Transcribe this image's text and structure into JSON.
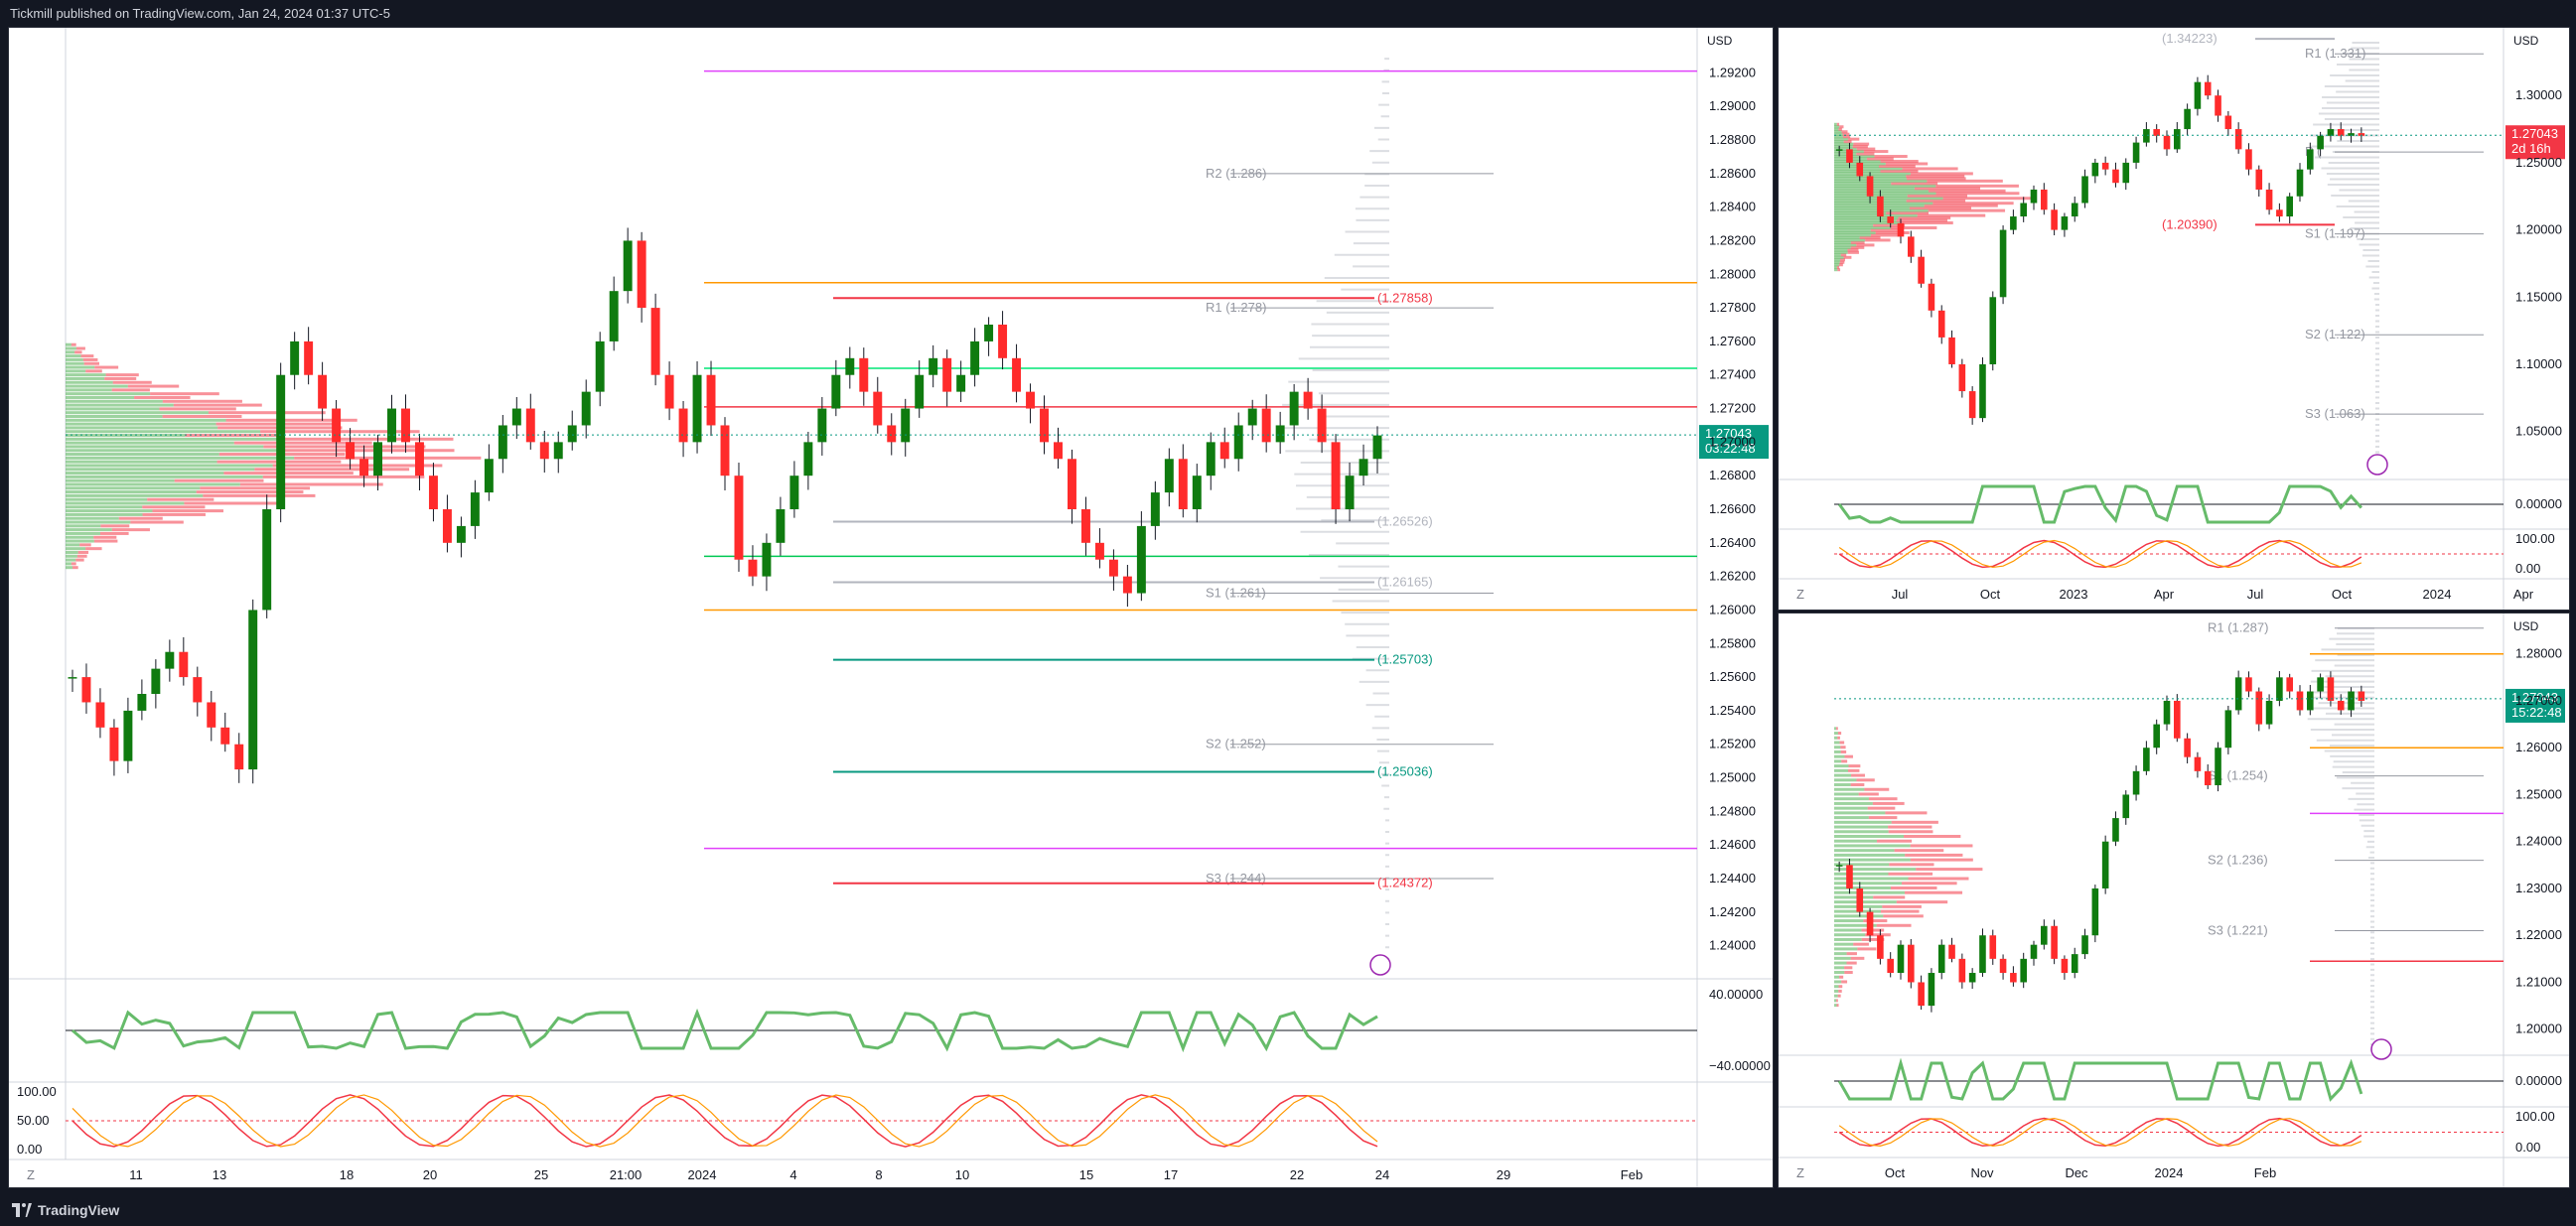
{
  "header": {
    "published": "Tickmill published on TradingView.com, Jan 24, 2024 01:37 UTC-5"
  },
  "footer": {
    "brand": "TradingView"
  },
  "chart_data": [
    {
      "type": "candlestick",
      "panel": "main",
      "currency": "USD",
      "last_price": "1.27043",
      "countdown": "03:22:48",
      "y_ticks": [
        "1.29200",
        "1.29000",
        "1.28800",
        "1.28600",
        "1.28400",
        "1.28200",
        "1.28000",
        "1.27800",
        "1.27600",
        "1.27400",
        "1.27200",
        "1.27000",
        "1.26800",
        "1.26600",
        "1.26400",
        "1.26200",
        "1.26000",
        "1.25800",
        "1.25600",
        "1.25400",
        "1.25200",
        "1.25000",
        "1.24800",
        "1.24600",
        "1.24400",
        "1.24200",
        "1.24000"
      ],
      "ylim": [
        1.2385,
        1.2935
      ],
      "x_ticks": [
        "11",
        "13",
        "18",
        "20",
        "25",
        "21:00",
        "2024",
        "4",
        "8",
        "10",
        "15",
        "17",
        "22",
        "24",
        "29",
        "Feb"
      ],
      "pivot_labels": [
        {
          "label": "R2 (1.286)",
          "value": 1.286
        },
        {
          "label": "R1 (1.278)",
          "value": 1.278
        },
        {
          "label": "S1 (1.261)",
          "value": 1.261
        },
        {
          "label": "S2 (1.252)",
          "value": 1.252
        },
        {
          "label": "S3 (1.244)",
          "value": 1.244
        }
      ],
      "level_labels": [
        {
          "label": "(1.27858)",
          "value": 1.27858,
          "color": "#f23645"
        },
        {
          "label": "(1.26526)",
          "value": 1.26526,
          "color": "#b2b5be"
        },
        {
          "label": "(1.26165)",
          "value": 1.26165,
          "color": "#b2b5be"
        },
        {
          "label": "(1.25703)",
          "value": 1.25703,
          "color": "#089981"
        },
        {
          "label": "(1.25036)",
          "value": 1.25036,
          "color": "#089981"
        },
        {
          "label": "(1.24372)",
          "value": 1.24372,
          "color": "#f23645"
        }
      ],
      "hlines": [
        {
          "value": 1.2921,
          "color": "#e040fb"
        },
        {
          "value": 1.2795,
          "color": "#ff9800"
        },
        {
          "value": 1.2744,
          "color": "#00e676"
        },
        {
          "value": 1.2721,
          "color": "#f23645"
        },
        {
          "value": 1.2632,
          "color": "#00c853"
        },
        {
          "value": 1.26,
          "color": "#ff9800"
        },
        {
          "value": 1.2458,
          "color": "#e040fb"
        }
      ],
      "rsi_ticks": [
        "40.00000",
        "−40.00000"
      ],
      "stoch_ticks": [
        "100.00",
        "50.00",
        "0.00"
      ],
      "close_series": [
        1.256,
        1.2545,
        1.253,
        1.251,
        1.254,
        1.255,
        1.2565,
        1.2575,
        1.256,
        1.2545,
        1.253,
        1.252,
        1.2505,
        1.26,
        1.266,
        1.274,
        1.276,
        1.274,
        1.272,
        1.27,
        1.269,
        1.268,
        1.27,
        1.272,
        1.27,
        1.268,
        1.266,
        1.264,
        1.265,
        1.267,
        1.269,
        1.271,
        1.272,
        1.27,
        1.269,
        1.27,
        1.271,
        1.273,
        1.276,
        1.279,
        1.282,
        1.278,
        1.274,
        1.272,
        1.27,
        1.274,
        1.271,
        1.268,
        1.263,
        1.262,
        1.264,
        1.266,
        1.268,
        1.27,
        1.272,
        1.274,
        1.275,
        1.273,
        1.271,
        1.27,
        1.272,
        1.274,
        1.275,
        1.273,
        1.274,
        1.276,
        1.277,
        1.275,
        1.273,
        1.272,
        1.27,
        1.269,
        1.266,
        1.264,
        1.263,
        1.262,
        1.261,
        1.265,
        1.267,
        1.269,
        1.266,
        1.268,
        1.27,
        1.269,
        1.271,
        1.272,
        1.27,
        1.271,
        1.273,
        1.272,
        1.27,
        1.266,
        1.268,
        1.269,
        1.2704
      ]
    },
    {
      "type": "candlestick",
      "panel": "weekly",
      "currency": "USD",
      "last_price": "1.27043",
      "countdown": "2d 16h",
      "y_ticks": [
        "1.30000",
        "1.25000",
        "1.20000",
        "1.15000",
        "1.10000",
        "1.05000"
      ],
      "ylim": [
        1.018,
        1.343
      ],
      "x_ticks": [
        "Jul",
        "Oct",
        "2023",
        "Apr",
        "Jul",
        "Oct",
        "2024",
        "Apr"
      ],
      "pivot_labels": [
        {
          "label": "R1 (1.331)",
          "value": 1.331
        },
        {
          "label": "P (",
          "value": 1.258
        },
        {
          "label": "S1 (1.197)",
          "value": 1.197
        },
        {
          "label": "S2 (1.122)",
          "value": 1.122
        },
        {
          "label": "S3 (1.063)",
          "value": 1.063
        }
      ],
      "level_labels": [
        {
          "label": "(1.34223)",
          "value": 1.3422,
          "color": "#b2b5be"
        },
        {
          "label": "(1.20390)",
          "value": 1.2039,
          "color": "#f23645"
        }
      ],
      "rsi_ticks": [
        "0.00000"
      ],
      "stoch_ticks": [
        "100.00",
        "0.00"
      ],
      "close_series": [
        1.26,
        1.25,
        1.24,
        1.225,
        1.21,
        1.205,
        1.195,
        1.18,
        1.16,
        1.14,
        1.12,
        1.1,
        1.08,
        1.06,
        1.1,
        1.15,
        1.2,
        1.21,
        1.22,
        1.23,
        1.215,
        1.2,
        1.21,
        1.22,
        1.24,
        1.25,
        1.245,
        1.235,
        1.25,
        1.265,
        1.275,
        1.27,
        1.26,
        1.275,
        1.29,
        1.31,
        1.3,
        1.285,
        1.275,
        1.26,
        1.245,
        1.23,
        1.215,
        1.21,
        1.225,
        1.245,
        1.26,
        1.27,
        1.275,
        1.27,
        1.272,
        1.27
      ]
    },
    {
      "type": "candlestick",
      "panel": "daily",
      "currency": "USD",
      "last_price": "1.27043",
      "countdown": "15:22:48",
      "y_ticks": [
        "1.28000",
        "1.27000",
        "1.26000",
        "1.25000",
        "1.24000",
        "1.23000",
        "1.22000",
        "1.21000",
        "1.20000"
      ],
      "ylim": [
        1.1955,
        1.2865
      ],
      "x_ticks": [
        "Oct",
        "Nov",
        "Dec",
        "2024",
        "Feb"
      ],
      "pivot_labels": [
        {
          "label": "R1 (1.287)",
          "value": 1.2855
        },
        {
          "label": "S1 (1.254)",
          "value": 1.254
        },
        {
          "label": "S2 (1.236)",
          "value": 1.236
        },
        {
          "label": "S3 (1.221)",
          "value": 1.221
        }
      ],
      "hlines": [
        {
          "value": 1.28,
          "color": "#ff9800"
        },
        {
          "value": 1.26,
          "color": "#ff9800"
        },
        {
          "value": 1.246,
          "color": "#e040fb"
        },
        {
          "value": 1.2145,
          "color": "#f23645"
        }
      ],
      "rsi_ticks": [
        "0.00000"
      ],
      "stoch_ticks": [
        "100.00",
        "0.00"
      ],
      "close_series": [
        1.235,
        1.23,
        1.225,
        1.22,
        1.215,
        1.212,
        1.218,
        1.21,
        1.205,
        1.212,
        1.218,
        1.215,
        1.21,
        1.212,
        1.22,
        1.215,
        1.212,
        1.21,
        1.215,
        1.218,
        1.222,
        1.215,
        1.212,
        1.216,
        1.22,
        1.23,
        1.24,
        1.245,
        1.25,
        1.255,
        1.26,
        1.265,
        1.27,
        1.262,
        1.258,
        1.255,
        1.252,
        1.26,
        1.268,
        1.275,
        1.272,
        1.265,
        1.27,
        1.275,
        1.272,
        1.268,
        1.272,
        1.275,
        1.27,
        1.268,
        1.272,
        1.27
      ]
    }
  ]
}
